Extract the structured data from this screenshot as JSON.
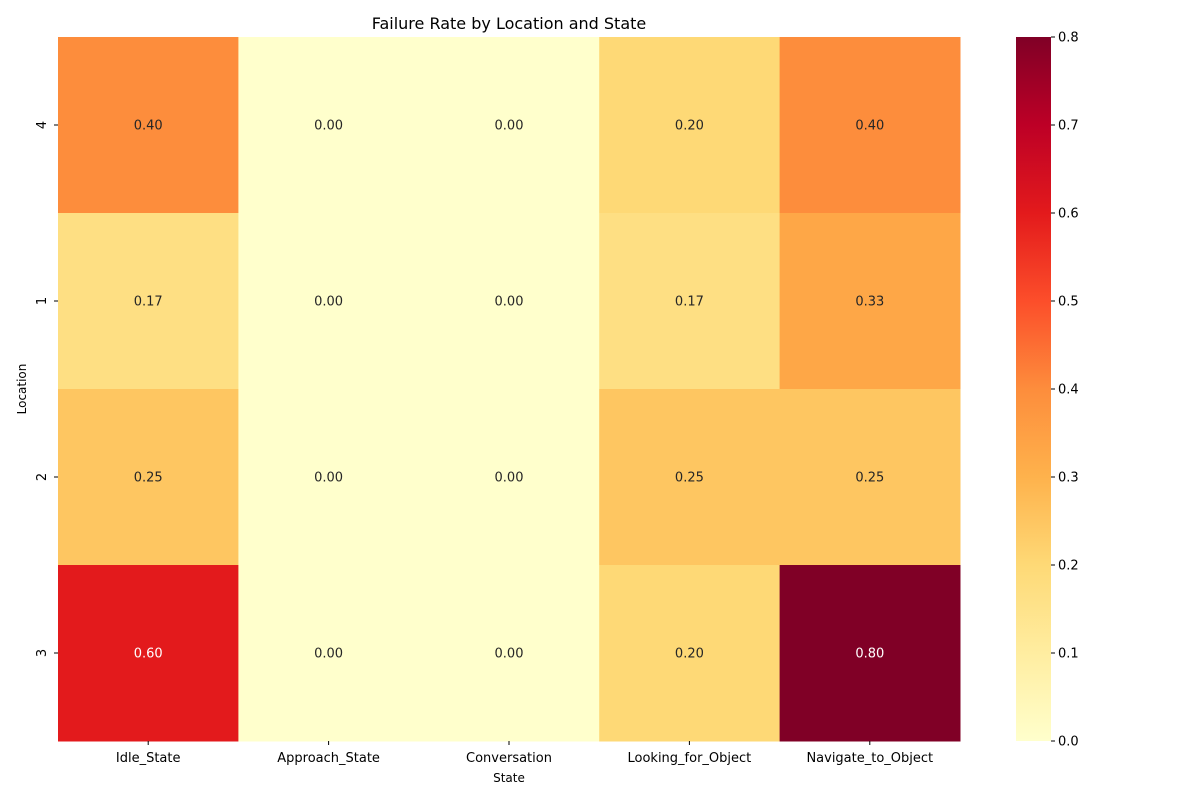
{
  "chart_data": {
    "type": "heatmap",
    "title": "Failure Rate by Location and State",
    "xlabel": "State",
    "ylabel": "Location",
    "x_categories": [
      "Idle_State",
      "Approach_State",
      "Conversation",
      "Looking_for_Object",
      "Navigate_to_Object"
    ],
    "y_categories": [
      "4",
      "1",
      "2",
      "3"
    ],
    "values": [
      [
        0.4,
        0.0,
        0.0,
        0.2,
        0.4
      ],
      [
        0.17,
        0.0,
        0.0,
        0.17,
        0.33
      ],
      [
        0.25,
        0.0,
        0.0,
        0.25,
        0.25
      ],
      [
        0.6,
        0.0,
        0.0,
        0.2,
        0.8
      ]
    ],
    "value_format_decimals": 2,
    "colormap": "YlOrRd",
    "colorbar": {
      "range": [
        0.0,
        0.8
      ],
      "ticks": [
        "0.0",
        "0.1",
        "0.2",
        "0.3",
        "0.4",
        "0.5",
        "0.6",
        "0.7",
        "0.8"
      ],
      "colors": [
        "#ffffcc",
        "#ffeda0",
        "#fed976",
        "#feb24c",
        "#fd8d3c",
        "#fc4e2a",
        "#e31a1c",
        "#bd0026",
        "#800026"
      ]
    }
  }
}
